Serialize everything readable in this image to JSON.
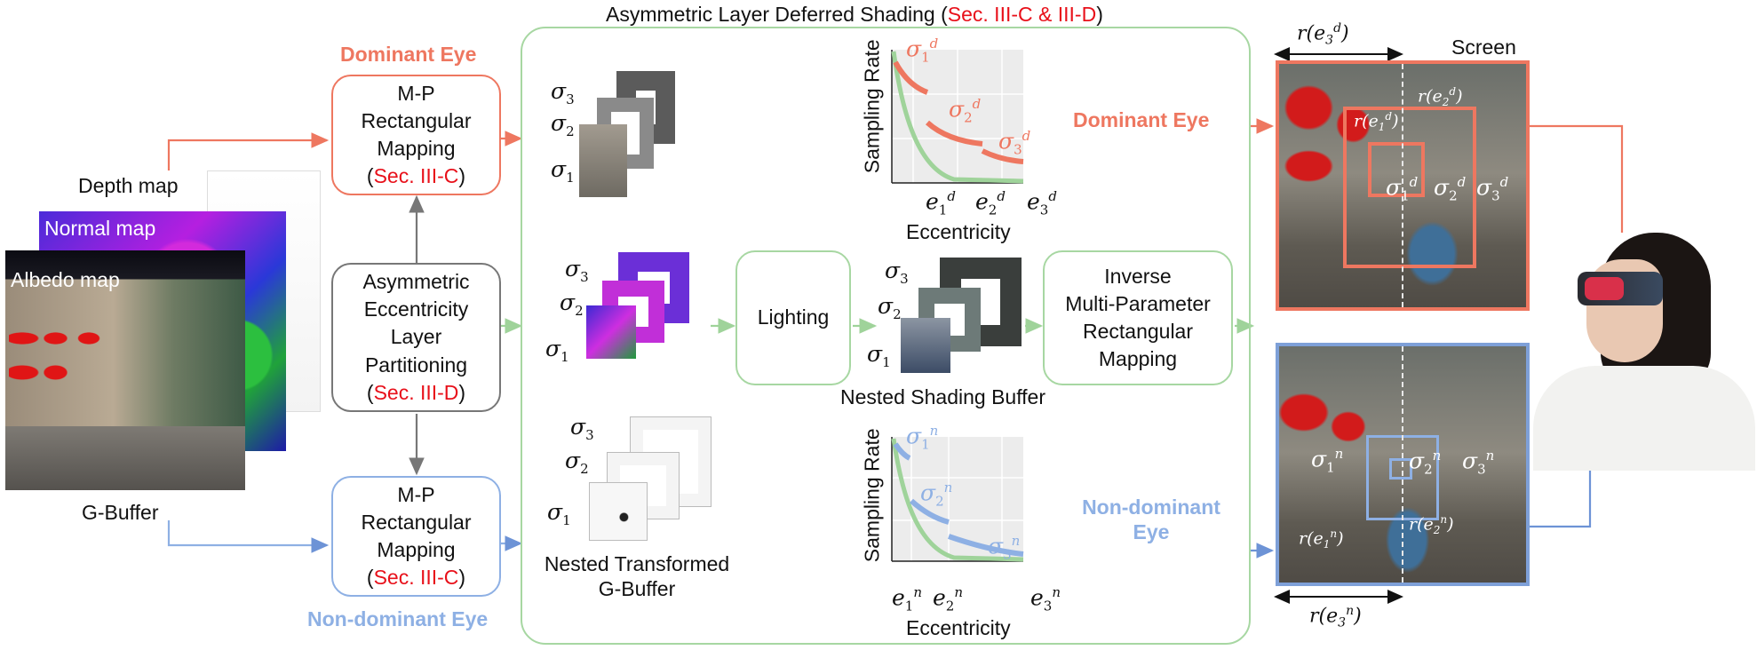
{
  "title": {
    "prefix": "Asymmetric Layer Deferred Shading (",
    "ref": "Sec. III-C & III-D",
    "suffix": ")"
  },
  "gbuffer": {
    "depth": "Depth map",
    "normal": "Normal map",
    "albedo": "Albedo map",
    "caption": "G-Buffer"
  },
  "eyes": {
    "dominant": "Dominant Eye",
    "nondominant": "Non-dominant Eye",
    "nondominant_line1": "Non-dominant",
    "nondominant_line2": "Eye"
  },
  "mp_top": {
    "l1": "M-P",
    "l2": "Rectangular",
    "l3": "Mapping",
    "ref": "Sec. III-C"
  },
  "mp_bottom": {
    "l1": "M-P",
    "l2": "Rectangular",
    "l3": "Mapping",
    "ref": "Sec. III-C"
  },
  "partition": {
    "l1": "Asymmetric",
    "l2": "Eccentricity",
    "l3": "Layer",
    "l4": "Partitioning",
    "ref": "Sec. III-D"
  },
  "lighting": "Lighting",
  "inverse": {
    "l1": "Inverse",
    "l2": "Multi-Parameter",
    "l3": "Rectangular",
    "l4": "Mapping"
  },
  "nested_shading": "Nested Shading Buffer",
  "nested_gbuffer": {
    "l1": "Nested Transformed",
    "l2": "G-Buffer"
  },
  "screen": "Screen",
  "plot_labels": {
    "ylabel": "Sampling Rate",
    "xlabel": "Eccentricity"
  },
  "sigma": {
    "s": "σ",
    "i1": "1",
    "i2": "2",
    "i3": "3",
    "d": "d",
    "n": "n"
  },
  "ecc": {
    "e": "e",
    "r": "r"
  },
  "colors": {
    "salmon": "#ee7760",
    "blue": "#8eb0e4",
    "green": "#9fd39a",
    "red": "#e8101a"
  }
}
